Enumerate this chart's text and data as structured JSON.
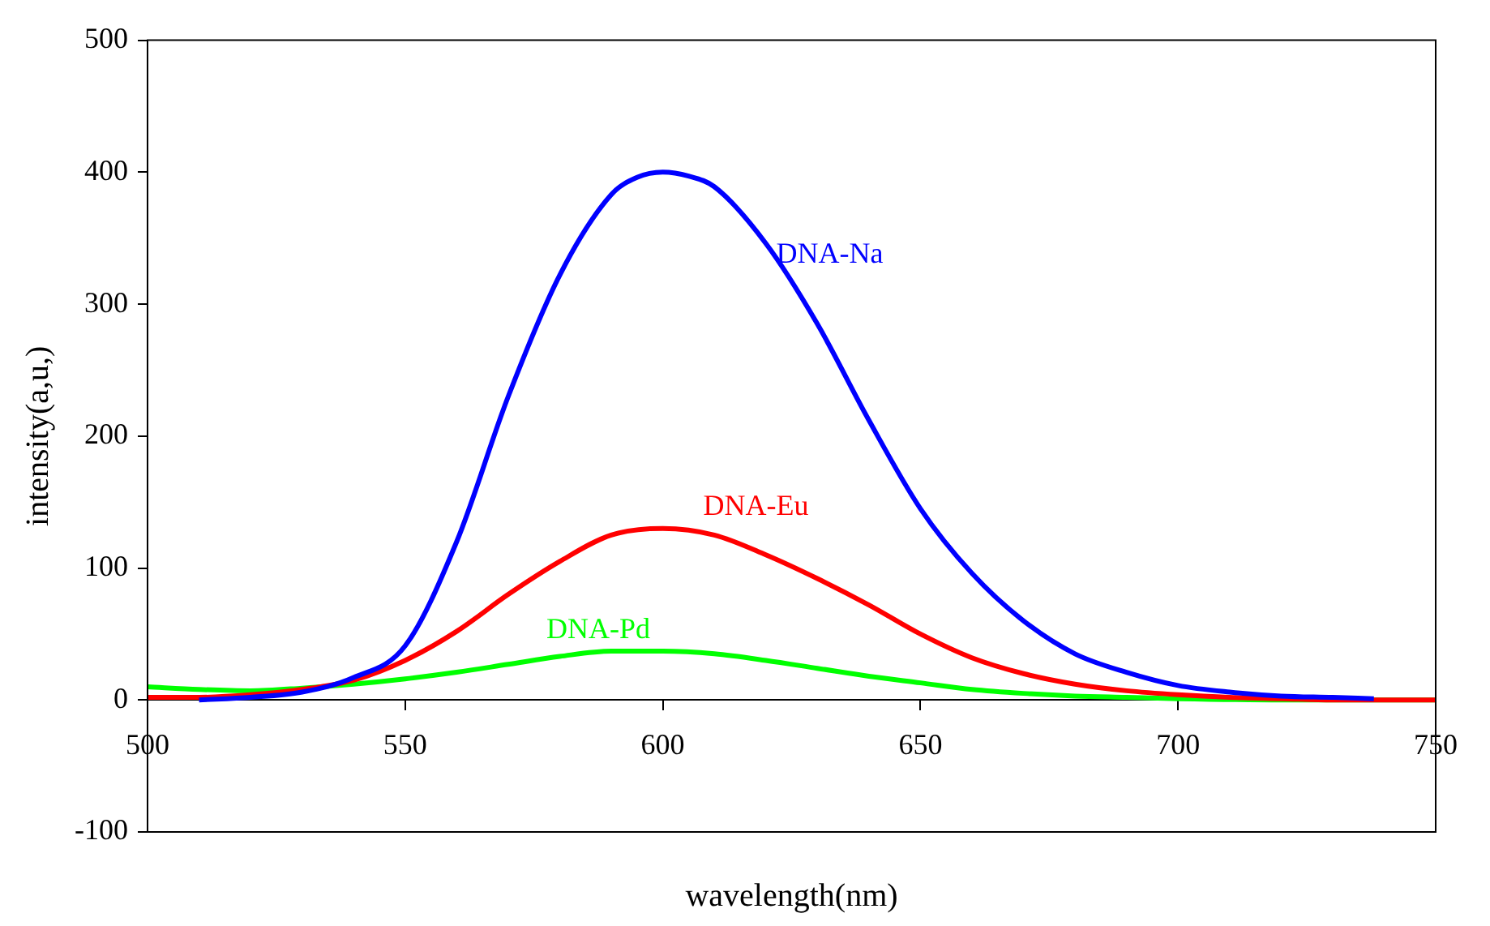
{
  "chart_data": {
    "type": "line",
    "xlabel": "wavelength(nm)",
    "ylabel": "intensity(a,u,)",
    "xlim": [
      500,
      750
    ],
    "xticks": [
      500,
      550,
      600,
      650,
      700,
      750
    ],
    "ylim": [
      -100,
      500
    ],
    "yticks": [
      -100,
      0,
      100,
      200,
      300,
      400,
      500
    ],
    "grid": false,
    "legend": false,
    "marker": "none",
    "line_style": "solid",
    "series": [
      {
        "name": "DNA-Na",
        "color": "#0000ff",
        "x": [
          510,
          520,
          530,
          540,
          550,
          560,
          570,
          580,
          590,
          595,
          600,
          605,
          610,
          620,
          630,
          640,
          650,
          660,
          670,
          680,
          690,
          700,
          710,
          720,
          730,
          738
        ],
        "values": [
          0,
          2,
          6,
          17,
          41,
          120,
          230,
          322,
          383,
          396,
          400,
          397,
          389,
          346,
          285,
          212,
          145,
          96,
          60,
          35,
          21,
          11,
          6,
          3,
          2,
          1
        ]
      },
      {
        "name": "DNA-Eu",
        "color": "#ff0000",
        "x": [
          500,
          510,
          520,
          530,
          540,
          550,
          560,
          570,
          580,
          590,
          600,
          610,
          620,
          630,
          640,
          650,
          660,
          670,
          680,
          690,
          700,
          710,
          720,
          730,
          750
        ],
        "values": [
          2,
          2,
          4,
          8,
          15,
          30,
          52,
          80,
          105,
          125,
          130,
          125,
          110,
          92,
          72,
          50,
          32,
          20,
          12,
          7,
          4,
          2,
          1,
          0,
          0
        ]
      },
      {
        "name": "DNA-Pd",
        "color": "#00ff00",
        "x": [
          500,
          510,
          520,
          530,
          540,
          550,
          560,
          570,
          580,
          590,
          600,
          610,
          620,
          630,
          640,
          650,
          660,
          670,
          680,
          690,
          700,
          720,
          750
        ],
        "values": [
          10,
          8,
          7,
          9,
          12,
          16,
          21,
          27,
          33,
          37,
          37,
          35,
          30,
          24,
          18,
          13,
          8,
          5,
          3,
          2,
          1,
          0,
          0
        ]
      }
    ]
  }
}
